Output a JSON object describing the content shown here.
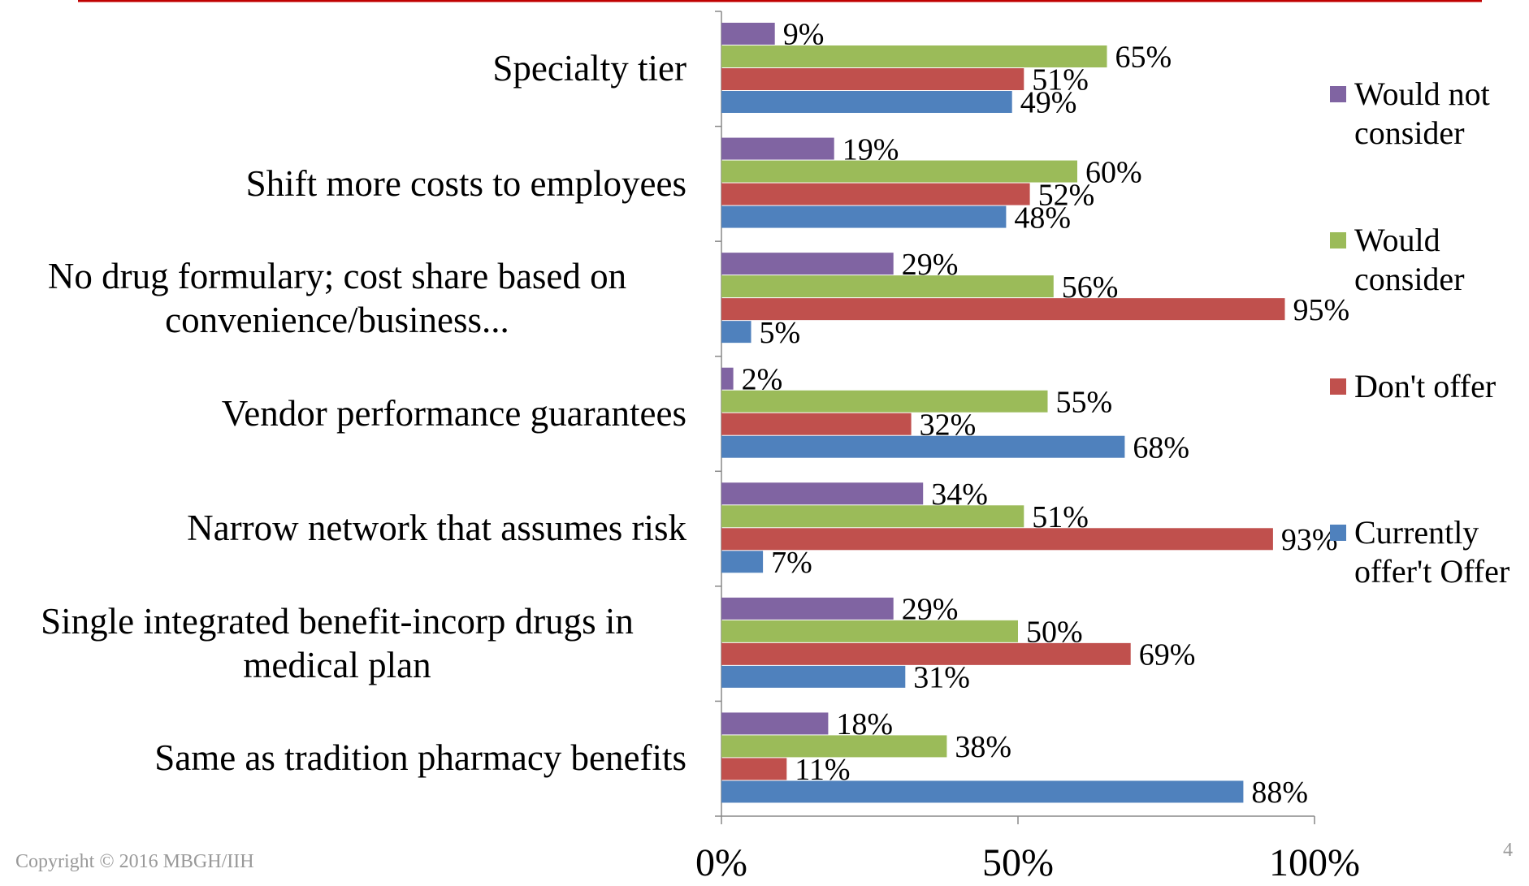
{
  "chart_data": {
    "type": "barh",
    "categories": [
      "Specialty tier",
      "Shift more costs to employees",
      "No drug formulary; cost share based on convenience/business...",
      "Vendor performance guarantees",
      "Narrow network that assumes risk",
      "Single integrated benefit-incorp drugs in medical plan",
      "Same as tradition pharmacy benefits"
    ],
    "series": [
      {
        "name": "Would not consider",
        "color": "#8064a2",
        "values": [
          9,
          19,
          29,
          2,
          34,
          29,
          18
        ],
        "value_labels": [
          "9%",
          "19%",
          "29%",
          "2%",
          "34%",
          "29%",
          "18%"
        ]
      },
      {
        "name": "Would consider",
        "color": "#9bbb59",
        "values": [
          65,
          60,
          56,
          55,
          51,
          50,
          38
        ],
        "value_labels": [
          "65%",
          "60%",
          "56%",
          "55%",
          "51%",
          "50%",
          "38%"
        ]
      },
      {
        "name": "Don't offer",
        "color": "#c0504d",
        "values": [
          51,
          52,
          95,
          32,
          93,
          69,
          11
        ],
        "value_labels": [
          "51%",
          "52%",
          "95%",
          "32%",
          "93%",
          "69%",
          "11%"
        ]
      },
      {
        "name": "Currently offer't Offer",
        "color": "#4f81bd",
        "values": [
          49,
          48,
          5,
          68,
          7,
          31,
          88
        ],
        "value_labels": [
          "49%",
          "48%",
          "5%",
          "68%",
          "7%",
          "31%",
          "88%"
        ]
      }
    ],
    "xlim": [
      0,
      100
    ],
    "xticks": [
      {
        "value": 0,
        "label": "0%"
      },
      {
        "value": 50,
        "label": "50%"
      },
      {
        "value": 100,
        "label": "100%"
      }
    ],
    "legend": "right",
    "copyright": "Copyright © 2016 MBGH/IIH",
    "page_number": "4"
  }
}
